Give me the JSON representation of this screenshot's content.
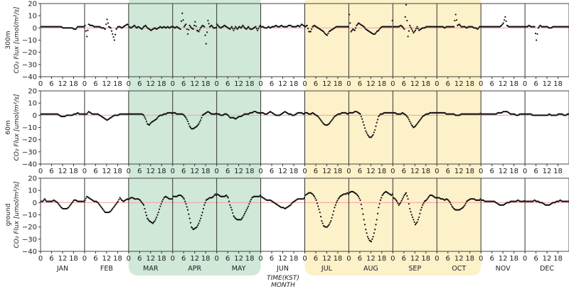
{
  "chart_data": {
    "type": "scatter",
    "xlabel": "TIME(KST)",
    "xlabel2": "MONTH",
    "ylim": [
      -40,
      20
    ],
    "yticks": [
      20,
      10,
      0,
      -10,
      -20,
      -30,
      -40
    ],
    "hour_ticks": [
      0,
      6,
      12,
      18
    ],
    "months": [
      "JAN",
      "FEB",
      "MAR",
      "APR",
      "MAY",
      "JUN",
      "JUL",
      "AUG",
      "SEP",
      "OCT",
      "NOV",
      "DEC"
    ],
    "shaded_periods": [
      {
        "months": [
          "MAR",
          "APR",
          "MAY"
        ],
        "color": "#cfe8d8"
      },
      {
        "months": [
          "JUL",
          "AUG",
          "SEP",
          "OCT"
        ],
        "color": "#fdf1c9"
      }
    ],
    "zero_line_color": "#f4a6a6",
    "point_color": "#111111",
    "panels": [
      {
        "height_label": "300m",
        "ylabel": "CO₂ Flux [umol/m²/s]",
        "monthly_diurnal": [
          [
            1,
            1,
            1,
            1,
            1,
            1,
            1,
            1,
            1,
            1,
            1,
            1,
            0,
            0,
            0,
            0,
            0,
            0,
            -1,
            -1,
            1,
            1,
            1,
            1
          ],
          [
            2,
            -7,
            3,
            2,
            2,
            1,
            1,
            1,
            1,
            0,
            0,
            -1,
            7,
            1,
            0,
            -5,
            -10,
            -1,
            1,
            1,
            0,
            1,
            2,
            3
          ],
          [
            1,
            0,
            1,
            2,
            0,
            1,
            0,
            -1,
            1,
            2,
            0,
            -1,
            -2,
            -1,
            0,
            -1,
            0,
            1,
            0,
            1,
            0,
            1,
            0,
            1
          ],
          [
            1,
            0,
            1,
            0,
            -1,
            12,
            1,
            3,
            -5,
            2,
            0,
            -1,
            5,
            -2,
            -3,
            0,
            2,
            1,
            -13,
            6,
            1,
            2,
            0,
            0
          ],
          [
            3,
            1,
            0,
            1,
            2,
            1,
            0,
            -1,
            1,
            -2,
            1,
            -1,
            1,
            0,
            2,
            0,
            -1,
            1,
            -1,
            -1,
            0,
            1,
            -2,
            1
          ],
          [
            1,
            1,
            0,
            0,
            1,
            0,
            1,
            1,
            2,
            1,
            1,
            2,
            1,
            1,
            1,
            2,
            2,
            1,
            1,
            1,
            2,
            1,
            3,
            2
          ],
          [
            1,
            2,
            -3,
            -3,
            1,
            2,
            1,
            0,
            -1,
            -2,
            -3,
            -5,
            -6,
            -3,
            -2,
            -1,
            0,
            1,
            1,
            1,
            1,
            1,
            1,
            1
          ],
          [
            11,
            -3,
            -1,
            -2,
            2,
            4,
            3,
            2,
            1,
            -1,
            -2,
            -3,
            -4,
            -5,
            -5,
            -3,
            -2,
            0,
            1,
            1,
            1,
            1,
            1,
            1
          ],
          [
            1,
            1,
            1,
            1,
            2,
            1,
            -1,
            19,
            -7,
            2,
            -1,
            -4,
            -2,
            1,
            -2,
            -1,
            0,
            0,
            1,
            1,
            1,
            1,
            1,
            1
          ],
          [
            1,
            1,
            1,
            1,
            0,
            1,
            1,
            1,
            1,
            1,
            11,
            2,
            3,
            1,
            1,
            1,
            0,
            1,
            1,
            1,
            0,
            0,
            -1,
            1
          ],
          [
            1,
            1,
            1,
            1,
            1,
            1,
            1,
            1,
            1,
            1,
            1,
            2,
            4,
            9,
            2,
            1,
            1,
            1,
            1,
            1,
            1,
            1,
            1,
            1
          ],
          [
            1,
            1,
            2,
            1,
            1,
            1,
            -10,
            0,
            2,
            1,
            1,
            1,
            1,
            0,
            0,
            1,
            1,
            1,
            1,
            1,
            1,
            1,
            1,
            1
          ]
        ]
      },
      {
        "height_label": "60m",
        "ylabel": "CO₂ Flux [umol/m²/s]",
        "monthly_diurnal": [
          [
            1,
            1,
            1,
            1,
            1,
            1,
            1,
            1,
            1,
            1,
            0,
            -1,
            -1,
            -1,
            0,
            0,
            0,
            0,
            1,
            1,
            2,
            1,
            1,
            1
          ],
          [
            1,
            1,
            3,
            2,
            1,
            1,
            1,
            1,
            0,
            -1,
            -2,
            -3,
            -4,
            -3,
            -2,
            -1,
            0,
            0,
            0,
            1,
            1,
            1,
            1,
            1
          ],
          [
            1,
            1,
            1,
            1,
            1,
            1,
            1,
            1,
            0,
            -3,
            -7,
            -8,
            -6,
            -5,
            -4,
            -3,
            -1,
            0,
            0,
            1,
            1,
            2,
            2,
            2
          ],
          [
            2,
            2,
            1,
            1,
            1,
            1,
            0,
            -2,
            -5,
            -9,
            -11,
            -11,
            -10,
            -9,
            -7,
            -4,
            0,
            1,
            2,
            3,
            2,
            1,
            1,
            1
          ],
          [
            1,
            1,
            0,
            0,
            1,
            1,
            0,
            -2,
            -2,
            -2,
            -3,
            -2,
            -1,
            -1,
            0,
            1,
            1,
            1,
            2,
            2,
            3,
            3,
            2,
            2
          ],
          [
            2,
            2,
            1,
            1,
            2,
            3,
            2,
            1,
            0,
            0,
            0,
            1,
            2,
            3,
            2,
            1,
            1,
            0,
            0,
            1,
            2,
            2,
            2,
            1
          ],
          [
            2,
            2,
            1,
            1,
            2,
            1,
            0,
            -1,
            -3,
            -5,
            -7,
            -8,
            -8,
            -7,
            -5,
            -3,
            -1,
            0,
            1,
            1,
            2,
            2,
            2,
            1
          ],
          [
            2,
            2,
            2,
            3,
            3,
            2,
            1,
            -3,
            -8,
            -13,
            -16,
            -18,
            -18,
            -16,
            -12,
            -6,
            -1,
            1,
            1,
            2,
            2,
            2,
            2,
            2
          ],
          [
            2,
            2,
            1,
            1,
            1,
            2,
            1,
            0,
            -2,
            -5,
            -8,
            -10,
            -9,
            -7,
            -5,
            -3,
            -1,
            0,
            1,
            1,
            2,
            2,
            2,
            2
          ],
          [
            2,
            2,
            2,
            2,
            2,
            1,
            1,
            1,
            1,
            1,
            0,
            0,
            0,
            1,
            1,
            1,
            1,
            1,
            1,
            1,
            1,
            1,
            1,
            1
          ],
          [
            1,
            1,
            1,
            1,
            1,
            1,
            1,
            1,
            1,
            2,
            2,
            2,
            3,
            3,
            3,
            2,
            1,
            1,
            1,
            0,
            0,
            1,
            1,
            1
          ],
          [
            1,
            1,
            1,
            1,
            0,
            0,
            0,
            0,
            0,
            0,
            0,
            0,
            0,
            1,
            0,
            0,
            0,
            0,
            1,
            1,
            1,
            0,
            0,
            1
          ]
        ]
      },
      {
        "height_label": "ground",
        "ylabel": "CO₂ Flux [umol/m²/s]",
        "monthly_diurnal": [
          [
            1,
            1,
            3,
            1,
            1,
            1,
            1,
            2,
            1,
            0,
            -2,
            -4,
            -5,
            -5,
            -5,
            -4,
            -2,
            0,
            2,
            2,
            1,
            1,
            1,
            1
          ],
          [
            2,
            5,
            4,
            3,
            2,
            1,
            1,
            0,
            -2,
            -4,
            -6,
            -8,
            -8,
            -8,
            -7,
            -5,
            -3,
            -1,
            1,
            4,
            2,
            1,
            2,
            3
          ],
          [
            3,
            4,
            4,
            3,
            3,
            3,
            2,
            0,
            -2,
            -8,
            -13,
            -15,
            -16,
            -17,
            -15,
            -12,
            -8,
            -3,
            1,
            4,
            5,
            4,
            3,
            3
          ],
          [
            5,
            5,
            5,
            6,
            6,
            5,
            3,
            -1,
            -6,
            -13,
            -20,
            -22,
            -21,
            -20,
            -17,
            -13,
            -8,
            -2,
            2,
            3,
            4,
            4,
            5,
            7
          ],
          [
            7,
            6,
            5,
            5,
            5,
            6,
            4,
            -2,
            -6,
            -11,
            -13,
            -14,
            -14,
            -14,
            -12,
            -9,
            -6,
            -3,
            1,
            4,
            5,
            5,
            5,
            5
          ],
          [
            5,
            4,
            3,
            2,
            2,
            2,
            1,
            0,
            -1,
            -2,
            -3,
            -4,
            -4,
            -5,
            -4,
            -3,
            -2,
            0,
            1,
            2,
            3,
            3,
            3,
            3
          ],
          [
            6,
            7,
            8,
            8,
            7,
            5,
            2,
            -3,
            -8,
            -15,
            -19,
            -20,
            -20,
            -18,
            -15,
            -10,
            -4,
            0,
            3,
            5,
            6,
            7,
            7,
            8
          ],
          [
            8,
            9,
            9,
            8,
            7,
            5,
            2,
            -5,
            -14,
            -22,
            -28,
            -31,
            -32,
            -28,
            -22,
            -14,
            -4,
            2,
            6,
            8,
            9,
            8,
            7,
            6
          ],
          [
            4,
            3,
            1,
            -2,
            0,
            3,
            6,
            8,
            3,
            -5,
            -10,
            -14,
            -18,
            -16,
            -12,
            -6,
            -2,
            1,
            2,
            4,
            6,
            6,
            5,
            4
          ],
          [
            4,
            4,
            3,
            3,
            2,
            3,
            2,
            0,
            -3,
            -5,
            -6,
            -6,
            -6,
            -5,
            -4,
            -2,
            1,
            2,
            3,
            3,
            3,
            2,
            2,
            2
          ],
          [
            2,
            2,
            1,
            1,
            1,
            1,
            1,
            1,
            0,
            -1,
            -2,
            -2,
            -2,
            -1,
            0,
            0,
            1,
            1,
            1,
            1,
            2,
            1,
            1,
            1
          ],
          [
            1,
            1,
            1,
            1,
            1,
            2,
            1,
            1,
            0,
            0,
            -1,
            -2,
            -2,
            -2,
            -1,
            0,
            0,
            1,
            1,
            2,
            1,
            1,
            1,
            1
          ]
        ]
      }
    ]
  }
}
